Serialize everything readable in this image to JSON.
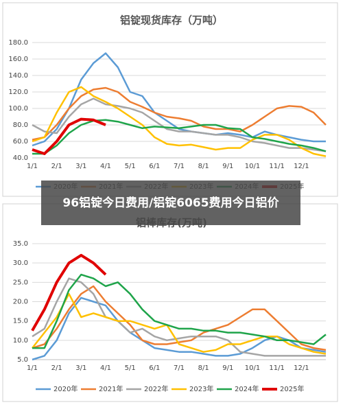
{
  "banner": "96铝锭今日费用/铝锭6065费用今日铝价",
  "chart_data": [
    {
      "type": "line",
      "title": "铝锭现货库存（万吨）",
      "categories": [
        "1/1",
        null,
        "2/1",
        null,
        "3/1",
        null,
        "4/1",
        null,
        "5/1",
        null,
        "6/1",
        null,
        "7/1",
        null,
        "8/1",
        null,
        "9/1",
        null,
        "10/1",
        null,
        "11/1",
        null,
        "12/1",
        null,
        null
      ],
      "ylim": [
        40,
        180
      ],
      "yticks": [
        {
          "value": 40,
          "label": "40.0"
        },
        {
          "value": 60,
          "label": "60.0"
        },
        {
          "value": 80,
          "label": "80.0"
        },
        {
          "value": 100,
          "label": "100.0"
        },
        {
          "value": 120,
          "label": "120.0"
        },
        {
          "value": 140,
          "label": "140.0"
        },
        {
          "value": 160,
          "label": "160.0"
        },
        {
          "value": 180,
          "label": "180.0"
        }
      ],
      "grid": true,
      "series": [
        {
          "name": "2020年",
          "color": "#5b9bd5",
          "values": [
            55,
            60,
            75,
            100,
            135,
            155,
            167,
            150,
            120,
            115,
            95,
            85,
            75,
            72,
            70,
            68,
            70,
            68,
            65,
            72,
            68,
            65,
            62,
            60,
            60
          ]
        },
        {
          "name": "2021年",
          "color": "#ed7d31",
          "values": [
            62,
            65,
            80,
            100,
            115,
            123,
            125,
            120,
            108,
            102,
            95,
            90,
            88,
            85,
            78,
            75,
            75,
            72,
            80,
            90,
            100,
            103,
            102,
            95,
            80
          ]
        },
        {
          "name": "2022年",
          "color": "#a5a5a5",
          "values": [
            80,
            72,
            70,
            90,
            105,
            112,
            105,
            103,
            100,
            95,
            85,
            75,
            72,
            72,
            70,
            68,
            68,
            65,
            60,
            58,
            55,
            52,
            52,
            50,
            48
          ]
        },
        {
          "name": "2023年",
          "color": "#ffc000",
          "values": [
            60,
            65,
            95,
            120,
            126,
            115,
            108,
            100,
            90,
            80,
            65,
            57,
            55,
            56,
            53,
            50,
            52,
            52,
            62,
            68,
            68,
            62,
            52,
            45,
            42
          ]
        },
        {
          "name": "2024年",
          "color": "#1fa44a",
          "values": [
            45,
            45,
            55,
            70,
            80,
            85,
            86,
            84,
            80,
            76,
            78,
            77,
            76,
            78,
            80,
            80,
            76,
            75,
            65,
            63,
            60,
            57,
            55,
            52,
            48
          ]
        },
        {
          "name": "2025年",
          "color": "#e00000",
          "values": [
            50,
            45,
            60,
            80,
            87,
            86,
            80,
            null,
            null,
            null,
            null,
            null,
            null,
            null,
            null,
            null,
            null,
            null,
            null,
            null,
            null,
            null,
            null,
            null,
            null
          ]
        }
      ]
    },
    {
      "type": "line",
      "title": "铝棒库存(万吨)",
      "categories": [
        "1/1",
        null,
        "2/1",
        null,
        "3/1",
        null,
        "4/1",
        null,
        "5/1",
        null,
        "6/1",
        null,
        "7/1",
        null,
        "8/1",
        null,
        "9/1",
        null,
        "10/1",
        null,
        "11/1",
        null,
        "12/1",
        null,
        null
      ],
      "ylim": [
        5,
        35
      ],
      "yticks": [
        {
          "value": 5,
          "label": "5.0"
        },
        {
          "value": 10,
          "label": "10.0"
        },
        {
          "value": 15,
          "label": "15.0"
        },
        {
          "value": 20,
          "label": "20.0"
        },
        {
          "value": 25,
          "label": "25.0"
        },
        {
          "value": 30,
          "label": "30.0"
        },
        {
          "value": 35,
          "label": "35.0"
        }
      ],
      "grid": true,
      "series": [
        {
          "name": "2020年",
          "color": "#5b9bd5",
          "values": [
            5,
            6,
            10,
            17,
            21,
            20,
            19,
            15,
            12,
            10,
            8,
            7.5,
            7,
            7,
            6.5,
            6,
            6,
            6.5,
            8,
            10,
            11,
            10,
            8,
            7.5,
            7
          ]
        },
        {
          "name": "2021年",
          "color": "#ed7d31",
          "values": [
            8,
            9,
            13,
            18,
            22,
            24,
            20,
            17,
            14,
            10,
            9,
            9,
            9.5,
            10,
            12,
            13,
            14,
            16,
            18,
            18,
            15,
            12,
            9,
            8,
            7.5
          ]
        },
        {
          "name": "2022年",
          "color": "#a5a5a5",
          "values": [
            11,
            13,
            20,
            26,
            25,
            22,
            16,
            15,
            12,
            13,
            11,
            10,
            10.5,
            11,
            11,
            11,
            10,
            7,
            6.5,
            6,
            6,
            6,
            6,
            6,
            6
          ]
        },
        {
          "name": "2023年",
          "color": "#ffc000",
          "values": [
            8,
            12,
            16,
            22,
            16,
            17,
            16,
            15,
            15,
            14,
            13,
            14,
            9,
            8,
            7,
            7.5,
            9,
            9,
            10,
            11,
            11,
            9,
            8,
            7,
            6.5
          ]
        },
        {
          "name": "2024年",
          "color": "#1fa44a",
          "values": [
            8,
            8,
            15,
            23,
            27,
            26,
            24,
            25,
            22,
            18,
            15,
            14,
            13,
            13,
            12.5,
            12.5,
            12,
            12,
            11.5,
            11,
            10,
            10,
            9.5,
            9,
            11.5
          ]
        },
        {
          "name": "2025年",
          "color": "#e00000",
          "values": [
            12.5,
            18,
            25,
            30,
            32,
            30,
            27,
            null,
            null,
            null,
            null,
            null,
            null,
            null,
            null,
            null,
            null,
            null,
            null,
            null,
            null,
            null,
            null,
            null,
            null
          ]
        }
      ]
    }
  ]
}
